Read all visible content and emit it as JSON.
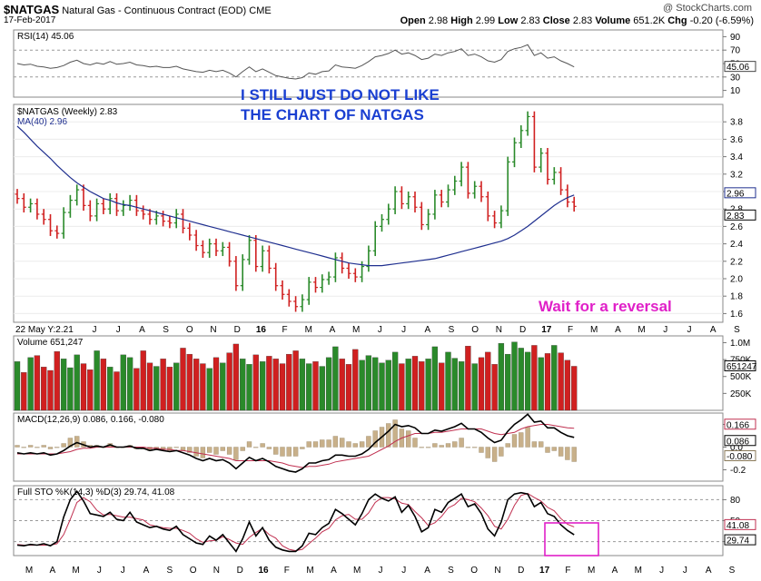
{
  "header": {
    "symbol": "$NATGAS",
    "name": "Natural Gas - Continuous Contract (EOD)",
    "exchange": "CME",
    "date": "17-Feb-2017",
    "watermark": "@ StockCharts.com",
    "quote": {
      "open_label": "Open",
      "open": "2.98",
      "high_label": "High",
      "high": "2.99",
      "low_label": "Low",
      "low": "2.83",
      "close_label": "Close",
      "close": "2.83",
      "volume_label": "Volume",
      "volume": "651.2K",
      "chg_label": "Chg",
      "chg": "-0.20 (-6.59%)"
    }
  },
  "annotations": {
    "line1": "I STILL JUST DO NOT LIKE",
    "line2": "THE CHART OF NATGAS",
    "reversal": "Wait for a reversal"
  },
  "colors": {
    "up": "#2a8a2a",
    "down": "#d02020",
    "ma": "#1f2f8f",
    "rsi": "#555555",
    "macd": "#000000",
    "signal": "#c03050",
    "hist": "#c8b08a",
    "blue_text": "#1a3fd1",
    "pink": "#e020c8"
  },
  "chart_data": {
    "type": "line",
    "title": "$NATGAS Natural Gas - Continuous Contract (EOD) CME",
    "interval": "Weekly",
    "x_axis": {
      "month_labels_main": [
        "J",
        "J",
        "A",
        "S",
        "O",
        "N",
        "D",
        "16",
        "F",
        "M",
        "A",
        "M",
        "J",
        "J",
        "A",
        "S",
        "O",
        "N",
        "D",
        "17",
        "F",
        "M",
        "A",
        "M",
        "J",
        "J",
        "A",
        "S"
      ],
      "month_labels_bottom": [
        "M",
        "A",
        "M",
        "J",
        "J",
        "A",
        "S",
        "O",
        "N",
        "D",
        "16",
        "F",
        "M",
        "A",
        "M",
        "J",
        "J",
        "A",
        "S",
        "O",
        "N",
        "D",
        "17",
        "F",
        "M",
        "A",
        "M",
        "J",
        "J",
        "A",
        "S"
      ],
      "start_label": "22 May Y:2.21"
    },
    "price": {
      "label": "$NATGAS (Weekly) 2.83",
      "ylim": [
        1.5,
        4.0
      ],
      "ticks": [
        "3.8",
        "3.6",
        "3.4",
        "3.2",
        "3.0",
        "2.8",
        "2.6",
        "2.4",
        "2.2",
        "2.0",
        "1.8",
        "1.6"
      ],
      "last_label": "2.83",
      "close": [
        2.92,
        2.82,
        2.86,
        2.74,
        2.68,
        2.55,
        2.52,
        2.76,
        2.9,
        3.02,
        2.84,
        2.72,
        2.86,
        2.8,
        2.92,
        2.78,
        2.84,
        2.9,
        2.78,
        2.74,
        2.68,
        2.72,
        2.66,
        2.64,
        2.74,
        2.58,
        2.5,
        2.38,
        2.3,
        2.4,
        2.32,
        2.36,
        2.2,
        1.92,
        2.22,
        2.44,
        2.14,
        2.32,
        2.12,
        1.92,
        1.82,
        1.74,
        1.68,
        1.76,
        1.96,
        1.9,
        1.99,
        2.02,
        2.24,
        2.12,
        2.06,
        2.02,
        2.14,
        2.32,
        2.6,
        2.68,
        2.8,
        3.0,
        2.86,
        2.94,
        2.82,
        2.62,
        2.74,
        2.96,
        2.88,
        3.02,
        3.12,
        3.28,
        2.98,
        3.06,
        2.94,
        2.72,
        2.64,
        2.78,
        3.34,
        3.56,
        3.7,
        3.86,
        3.28,
        3.44,
        3.14,
        3.22,
        3.02,
        2.88,
        2.83
      ],
      "ma": {
        "label": "MA(40) 2.96",
        "last_label": "2.96",
        "values": [
          3.75,
          3.68,
          3.6,
          3.52,
          3.45,
          3.38,
          3.3,
          3.23,
          3.16,
          3.1,
          3.05,
          3.0,
          2.96,
          2.92,
          2.9,
          2.87,
          2.85,
          2.84,
          2.82,
          2.8,
          2.78,
          2.76,
          2.74,
          2.72,
          2.7,
          2.68,
          2.66,
          2.64,
          2.62,
          2.6,
          2.58,
          2.56,
          2.54,
          2.52,
          2.5,
          2.48,
          2.46,
          2.44,
          2.42,
          2.4,
          2.38,
          2.36,
          2.34,
          2.32,
          2.3,
          2.28,
          2.26,
          2.24,
          2.22,
          2.2,
          2.18,
          2.17,
          2.16,
          2.15,
          2.15,
          2.15,
          2.16,
          2.17,
          2.18,
          2.19,
          2.2,
          2.21,
          2.22,
          2.23,
          2.25,
          2.27,
          2.29,
          2.31,
          2.33,
          2.35,
          2.37,
          2.39,
          2.41,
          2.43,
          2.46,
          2.5,
          2.55,
          2.6,
          2.66,
          2.72,
          2.78,
          2.84,
          2.89,
          2.93,
          2.96
        ]
      }
    },
    "rsi": {
      "label": "RSI(14) 45.06",
      "ylim": [
        0,
        100
      ],
      "ticks": [
        "90",
        "70",
        "50",
        "30",
        "10"
      ],
      "last_label": "45.06",
      "values": [
        50,
        48,
        49,
        46,
        45,
        43,
        44,
        47,
        52,
        55,
        50,
        48,
        51,
        49,
        53,
        49,
        50,
        52,
        48,
        47,
        45,
        46,
        44,
        44,
        46,
        42,
        40,
        38,
        37,
        40,
        38,
        40,
        36,
        30,
        38,
        45,
        38,
        42,
        37,
        32,
        30,
        28,
        27,
        29,
        36,
        34,
        38,
        39,
        48,
        45,
        44,
        43,
        47,
        53,
        60,
        62,
        65,
        70,
        64,
        66,
        62,
        56,
        58,
        64,
        62,
        66,
        68,
        72,
        62,
        64,
        60,
        54,
        52,
        56,
        68,
        72,
        74,
        78,
        62,
        66,
        58,
        60,
        54,
        50,
        45.06
      ]
    },
    "volume": {
      "label": "Volume 651,247",
      "ylim": [
        0,
        1100000
      ],
      "ticks": [
        "1.0M",
        "750K",
        "500K",
        "250K"
      ],
      "last_label": "651247",
      "values": [
        720000,
        560000,
        780000,
        810000,
        640000,
        590000,
        870000,
        760000,
        630000,
        820000,
        690000,
        600000,
        880000,
        760000,
        640000,
        570000,
        820000,
        780000,
        620000,
        880000,
        700000,
        650000,
        760000,
        640000,
        700000,
        920000,
        830000,
        760000,
        690000,
        620000,
        780000,
        700000,
        850000,
        980000,
        760000,
        680000,
        820000,
        720000,
        800000,
        760000,
        690000,
        830000,
        880000,
        760000,
        690000,
        720000,
        650000,
        780000,
        940000,
        760000,
        680000,
        900000,
        740000,
        810000,
        780000,
        700000,
        740000,
        860000,
        690000,
        760000,
        800000,
        720000,
        760000,
        940000,
        700000,
        860000,
        770000,
        720000,
        950000,
        690000,
        780000,
        860000,
        680000,
        990000,
        830000,
        1010000,
        920000,
        860000,
        960000,
        780000,
        840000,
        960000,
        850000,
        740000,
        651247
      ]
    },
    "macd": {
      "label": "MACD(12,26,9) 0.086, 0.166, -0.080",
      "ylim": [
        -0.3,
        0.3
      ],
      "ticks": [
        "0.2",
        "0.0",
        "-0.2"
      ],
      "last_labels": [
        "0.166",
        "0.086",
        "-0.080"
      ],
      "macd": [
        -0.05,
        -0.06,
        -0.05,
        -0.06,
        -0.05,
        -0.07,
        -0.06,
        -0.03,
        0.01,
        0.04,
        0.02,
        0.0,
        0.01,
        0.0,
        0.02,
        0.0,
        0.0,
        0.01,
        -0.01,
        -0.01,
        -0.03,
        -0.02,
        -0.03,
        -0.04,
        -0.03,
        -0.05,
        -0.07,
        -0.1,
        -0.12,
        -0.1,
        -0.12,
        -0.11,
        -0.14,
        -0.19,
        -0.14,
        -0.09,
        -0.12,
        -0.1,
        -0.13,
        -0.17,
        -0.19,
        -0.21,
        -0.22,
        -0.19,
        -0.14,
        -0.14,
        -0.12,
        -0.11,
        -0.07,
        -0.07,
        -0.08,
        -0.08,
        -0.06,
        -0.02,
        0.04,
        0.09,
        0.14,
        0.2,
        0.18,
        0.19,
        0.17,
        0.12,
        0.12,
        0.15,
        0.14,
        0.16,
        0.18,
        0.21,
        0.16,
        0.16,
        0.13,
        0.08,
        0.04,
        0.06,
        0.14,
        0.2,
        0.24,
        0.29,
        0.22,
        0.23,
        0.17,
        0.17,
        0.13,
        0.1,
        0.086
      ],
      "signal": [
        -0.06,
        -0.06,
        -0.06,
        -0.06,
        -0.06,
        -0.06,
        -0.06,
        -0.05,
        -0.04,
        -0.02,
        -0.01,
        -0.01,
        0.0,
        0.0,
        0.0,
        0.0,
        0.0,
        0.0,
        0.0,
        0.0,
        -0.01,
        -0.01,
        -0.02,
        -0.02,
        -0.03,
        -0.03,
        -0.04,
        -0.05,
        -0.06,
        -0.07,
        -0.08,
        -0.09,
        -0.1,
        -0.12,
        -0.12,
        -0.12,
        -0.12,
        -0.12,
        -0.12,
        -0.13,
        -0.14,
        -0.16,
        -0.17,
        -0.18,
        -0.17,
        -0.17,
        -0.16,
        -0.15,
        -0.13,
        -0.12,
        -0.11,
        -0.1,
        -0.09,
        -0.08,
        -0.05,
        -0.02,
        0.01,
        0.05,
        0.08,
        0.1,
        0.12,
        0.12,
        0.12,
        0.13,
        0.13,
        0.14,
        0.15,
        0.16,
        0.16,
        0.16,
        0.16,
        0.14,
        0.12,
        0.11,
        0.12,
        0.13,
        0.16,
        0.18,
        0.19,
        0.2,
        0.2,
        0.19,
        0.18,
        0.17,
        0.166
      ]
    },
    "stochastic": {
      "label": "Full STO %K(14,3) %D(3) 29.74, 41.08",
      "ylim": [
        0,
        100
      ],
      "ticks": [
        "80",
        "50",
        "20"
      ],
      "last_labels": [
        "41.08",
        "29.74"
      ],
      "k": [
        15,
        14,
        16,
        15,
        17,
        14,
        20,
        55,
        80,
        92,
        78,
        60,
        58,
        56,
        62,
        52,
        50,
        62,
        48,
        44,
        40,
        42,
        38,
        36,
        42,
        30,
        24,
        18,
        16,
        28,
        22,
        30,
        18,
        6,
        24,
        48,
        28,
        40,
        22,
        12,
        8,
        6,
        6,
        14,
        32,
        30,
        40,
        46,
        66,
        60,
        52,
        44,
        60,
        80,
        88,
        82,
        78,
        84,
        62,
        72,
        56,
        34,
        40,
        66,
        62,
        76,
        82,
        88,
        70,
        74,
        60,
        38,
        28,
        48,
        80,
        88,
        90,
        88,
        70,
        76,
        60,
        56,
        44,
        36,
        29.74
      ],
      "d": [
        16,
        15,
        15,
        15,
        15,
        15,
        17,
        30,
        52,
        76,
        83,
        77,
        65,
        58,
        59,
        57,
        55,
        55,
        53,
        51,
        44,
        42,
        40,
        39,
        39,
        36,
        32,
        24,
        19,
        21,
        22,
        27,
        23,
        18,
        16,
        26,
        33,
        39,
        30,
        25,
        14,
        9,
        7,
        9,
        17,
        25,
        34,
        39,
        51,
        57,
        59,
        52,
        52,
        61,
        76,
        83,
        83,
        81,
        75,
        73,
        63,
        54,
        43,
        47,
        56,
        68,
        73,
        82,
        80,
        77,
        68,
        57,
        42,
        38,
        52,
        72,
        86,
        89,
        83,
        78,
        69,
        64,
        53,
        45,
        41.08
      ]
    }
  }
}
